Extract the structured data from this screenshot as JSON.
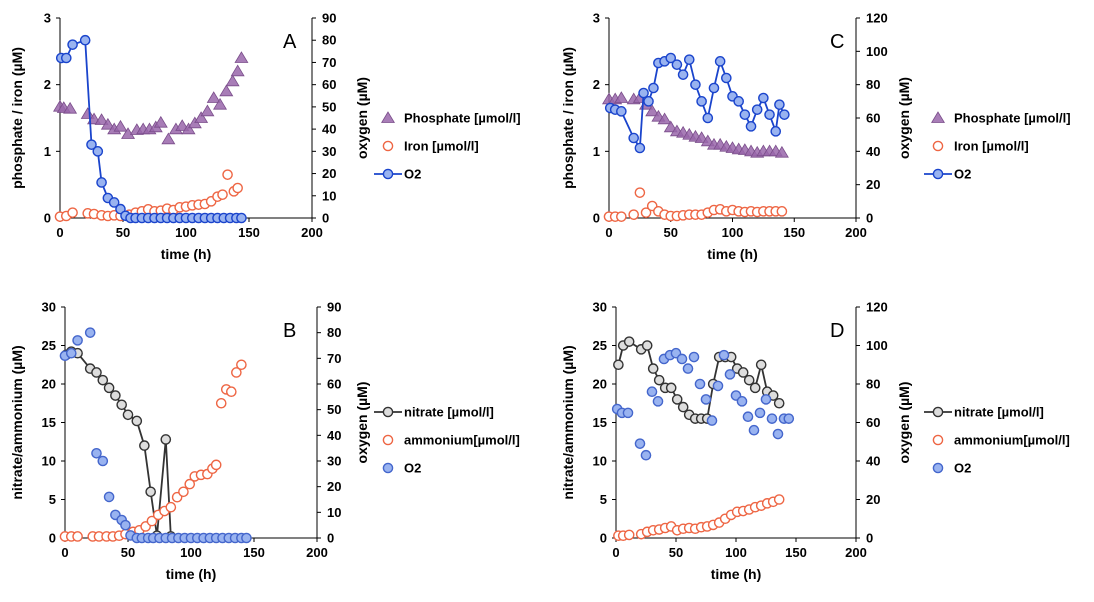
{
  "chart_data": [
    {
      "panel": "A",
      "type": "scatter",
      "xlabel": "time (h)",
      "ylabel": "phosphate / iron (µM)",
      "y2label": "oxygen (µM)",
      "xlim": [
        0,
        200
      ],
      "xticks": [
        0,
        50,
        100,
        150,
        200
      ],
      "ylim": [
        0,
        3
      ],
      "yticks": [
        0,
        1,
        2,
        3
      ],
      "y2lim": [
        0,
        90
      ],
      "y2ticks": [
        0,
        10,
        20,
        30,
        40,
        50,
        60,
        70,
        80,
        90
      ],
      "legend": [
        "Phosphate [µmol/l]",
        "Iron [µmol/l]",
        "O2"
      ],
      "series": [
        {
          "name": "Phosphate [µmol/l]",
          "axis": "left",
          "marker": "triangle",
          "color": "#9966aa",
          "line": false,
          "x": [
            0,
            3,
            8,
            22,
            27,
            33,
            38,
            43,
            48,
            54,
            61,
            66,
            71,
            76,
            80,
            86,
            92,
            97,
            102,
            107,
            112,
            117,
            122,
            127,
            132,
            137,
            141,
            144
          ],
          "y": [
            1.67,
            1.65,
            1.64,
            1.56,
            1.48,
            1.47,
            1.4,
            1.33,
            1.37,
            1.26,
            1.32,
            1.33,
            1.33,
            1.36,
            1.43,
            1.18,
            1.33,
            1.38,
            1.33,
            1.42,
            1.5,
            1.6,
            1.8,
            1.7,
            1.9,
            2.05,
            2.2,
            2.4
          ]
        },
        {
          "name": "Iron [µmol/l]",
          "axis": "left",
          "marker": "circle",
          "color": "#ee6644",
          "line": false,
          "x": [
            0,
            5,
            10,
            22,
            27,
            33,
            38,
            43,
            48,
            55,
            60,
            65,
            70,
            75,
            80,
            85,
            90,
            95,
            100,
            105,
            110,
            115,
            120,
            125,
            129,
            133,
            138,
            141
          ],
          "y": [
            0.02,
            0.03,
            0.08,
            0.07,
            0.06,
            0.04,
            0.03,
            0.04,
            0.03,
            0.05,
            0.08,
            0.1,
            0.13,
            0.1,
            0.11,
            0.14,
            0.12,
            0.16,
            0.17,
            0.19,
            0.2,
            0.21,
            0.25,
            0.32,
            0.35,
            0.65,
            0.4,
            0.45
          ]
        },
        {
          "name": "O2",
          "axis": "right",
          "marker": "circle",
          "color": "#1a44cc",
          "fill": "#99b3f0",
          "line": true,
          "x": [
            1,
            5,
            10,
            20,
            25,
            30,
            33,
            38,
            43,
            48,
            52,
            56,
            60,
            65,
            70,
            75,
            80,
            85,
            90,
            95,
            100,
            105,
            110,
            115,
            120,
            125,
            130,
            135,
            140,
            144
          ],
          "y": [
            72,
            72,
            78,
            80,
            33,
            30,
            16,
            9,
            7,
            4,
            1,
            0,
            0,
            0,
            0,
            0,
            0,
            0,
            0,
            0,
            0,
            0,
            0,
            0,
            0,
            0,
            0,
            0,
            0,
            0
          ]
        }
      ]
    },
    {
      "panel": "B",
      "type": "scatter",
      "xlabel": "time (h)",
      "ylabel": "nitrate/ammonium (µM)",
      "y2label": "oxygen (µM)",
      "xlim": [
        0,
        200
      ],
      "xticks": [
        0,
        50,
        100,
        150,
        200
      ],
      "ylim": [
        0,
        30
      ],
      "yticks": [
        0,
        5,
        10,
        15,
        20,
        25,
        30
      ],
      "y2lim": [
        0,
        90
      ],
      "y2ticks": [
        0,
        10,
        20,
        30,
        40,
        50,
        60,
        70,
        80,
        90
      ],
      "legend": [
        "nitrate [µmol/l]",
        "ammonium[µmol/l]",
        "O2"
      ],
      "series": [
        {
          "name": "nitrate [µmol/l]",
          "axis": "left",
          "marker": "circle",
          "color": "#333333",
          "fill": "#dddddd",
          "line": true,
          "x": [
            1,
            5,
            10,
            20,
            25,
            30,
            35,
            40,
            45,
            50,
            57,
            63,
            68,
            73,
            80,
            84
          ],
          "y": [
            23.8,
            24.2,
            24,
            22,
            21.5,
            20.5,
            19.5,
            18.5,
            17.3,
            16,
            15.2,
            12,
            6,
            0.3,
            12.8,
            0.2
          ]
        },
        {
          "name": "ammonium[µmol/l]",
          "axis": "left",
          "marker": "circle",
          "color": "#ee6644",
          "line": false,
          "x": [
            0,
            5,
            10,
            22,
            27,
            33,
            38,
            43,
            48,
            54,
            59,
            64,
            69,
            74,
            79,
            84,
            89,
            94,
            99,
            103,
            108,
            113,
            117,
            120,
            124,
            128,
            132,
            136,
            140
          ],
          "y": [
            0.2,
            0.2,
            0.2,
            0.2,
            0.2,
            0.2,
            0.2,
            0.3,
            0.5,
            0.8,
            1.0,
            1.5,
            2.2,
            3.0,
            3.5,
            4.0,
            5.3,
            6.0,
            7.0,
            8.0,
            8.2,
            8.3,
            9.0,
            9.5,
            17.5,
            19.3,
            19.0,
            21.5,
            22.5
          ]
        },
        {
          "name": "O2",
          "axis": "right",
          "marker": "circle",
          "color": "#4466cc",
          "fill": "#99b3f0",
          "line": false,
          "x": [
            0,
            5,
            10,
            20,
            25,
            30,
            35,
            40,
            45,
            48,
            52,
            57,
            61,
            66,
            70,
            75,
            80,
            85,
            90,
            95,
            100,
            105,
            110,
            115,
            120,
            125,
            130,
            135,
            140,
            144
          ],
          "y": [
            71,
            72,
            77,
            80,
            33,
            30,
            16,
            9,
            7,
            5,
            1,
            0,
            0,
            0,
            0,
            0,
            0,
            0,
            0,
            0,
            0,
            0,
            0,
            0,
            0,
            0,
            0,
            0,
            0,
            0
          ]
        }
      ]
    },
    {
      "panel": "C",
      "type": "scatter",
      "xlabel": "time (h)",
      "ylabel": "phosphate / iron (µM)",
      "y2label": "oxygen (µM)",
      "xlim": [
        0,
        200
      ],
      "xticks": [
        0,
        50,
        100,
        150,
        200
      ],
      "ylim": [
        0,
        3
      ],
      "yticks": [
        0,
        1,
        2,
        3
      ],
      "y2lim": [
        0,
        120
      ],
      "y2ticks": [
        0,
        20,
        40,
        60,
        80,
        100,
        120
      ],
      "legend": [
        "Phosphate [µmol/l]",
        "Iron [µmol/l]",
        "O2"
      ],
      "series": [
        {
          "name": "Phosphate [µmol/l]",
          "axis": "left",
          "marker": "triangle",
          "color": "#9966aa",
          "line": false,
          "x": [
            0,
            5,
            10,
            20,
            25,
            30,
            35,
            40,
            45,
            50,
            55,
            60,
            65,
            70,
            75,
            80,
            85,
            90,
            95,
            100,
            105,
            110,
            115,
            120,
            125,
            130,
            135,
            140
          ],
          "y": [
            1.78,
            1.78,
            1.8,
            1.78,
            1.8,
            1.7,
            1.6,
            1.52,
            1.48,
            1.36,
            1.3,
            1.28,
            1.25,
            1.22,
            1.2,
            1.15,
            1.1,
            1.1,
            1.07,
            1.05,
            1.03,
            1.02,
            1.0,
            0.98,
            1.0,
            1.0,
            1.0,
            0.98
          ]
        },
        {
          "name": "Iron [µmol/l]",
          "axis": "left",
          "marker": "circle",
          "color": "#ee6644",
          "line": false,
          "x": [
            0,
            5,
            10,
            20,
            25,
            30,
            35,
            40,
            45,
            50,
            55,
            60,
            65,
            70,
            75,
            80,
            85,
            90,
            95,
            100,
            105,
            110,
            115,
            120,
            125,
            130,
            135,
            140
          ],
          "y": [
            0.02,
            0.02,
            0.02,
            0.05,
            0.38,
            0.08,
            0.18,
            0.1,
            0.05,
            0.03,
            0.03,
            0.04,
            0.05,
            0.05,
            0.05,
            0.08,
            0.12,
            0.13,
            0.1,
            0.12,
            0.1,
            0.09,
            0.1,
            0.09,
            0.1,
            0.1,
            0.1,
            0.1
          ]
        },
        {
          "name": "O2",
          "axis": "right",
          "marker": "circle",
          "color": "#1a44cc",
          "fill": "#99b3f0",
          "line": true,
          "x": [
            1,
            5,
            10,
            20,
            25,
            28,
            32,
            36,
            40,
            45,
            50,
            55,
            60,
            65,
            70,
            75,
            80,
            85,
            90,
            95,
            100,
            105,
            110,
            115,
            120,
            125,
            130,
            135,
            138,
            142
          ],
          "y": [
            66,
            65,
            64,
            48,
            42,
            75,
            70,
            78,
            93,
            94,
            96,
            92,
            86,
            95,
            80,
            70,
            60,
            78,
            94,
            84,
            73,
            70,
            62,
            55,
            65,
            72,
            62,
            52,
            68,
            62
          ]
        }
      ]
    },
    {
      "panel": "D",
      "type": "scatter",
      "xlabel": "time (h)",
      "ylabel": "nitrate/ammonium (µM)",
      "y2label": "oxygen (µM)",
      "xlim": [
        0,
        200
      ],
      "xticks": [
        0,
        50,
        100,
        150,
        200
      ],
      "ylim": [
        0,
        30
      ],
      "yticks": [
        0,
        5,
        10,
        15,
        20,
        25,
        30
      ],
      "y2lim": [
        0,
        120
      ],
      "y2ticks": [
        0,
        20,
        40,
        60,
        80,
        100,
        120
      ],
      "legend": [
        "nitrate [µmol/l]",
        "ammonium[µmol/l]",
        "O2"
      ],
      "series": [
        {
          "name": "nitrate [µmol/l]",
          "axis": "left",
          "marker": "circle",
          "color": "#333333",
          "fill": "#dddddd",
          "line": true,
          "x": [
            2,
            6,
            11,
            21,
            26,
            31,
            36,
            41,
            46,
            51,
            56,
            61,
            66,
            71,
            76,
            81,
            86,
            91,
            96,
            101,
            106,
            111,
            116,
            121,
            126,
            131,
            136
          ],
          "y": [
            22.5,
            25,
            25.5,
            24.5,
            25,
            22,
            20.5,
            19.5,
            19.5,
            18,
            17,
            16,
            15.5,
            15.5,
            15.5,
            20,
            23.5,
            23.5,
            23.5,
            22,
            21.5,
            20.5,
            19.5,
            22.5,
            19,
            18.5,
            17.5
          ]
        },
        {
          "name": "ammonium[µmol/l]",
          "axis": "left",
          "marker": "circle",
          "color": "#ee6644",
          "line": false,
          "x": [
            2,
            6,
            11,
            21,
            26,
            31,
            36,
            41,
            46,
            51,
            56,
            61,
            66,
            71,
            76,
            81,
            86,
            91,
            96,
            101,
            106,
            111,
            116,
            121,
            126,
            131,
            136
          ],
          "y": [
            0.3,
            0.3,
            0.4,
            0.5,
            0.8,
            1.0,
            1.1,
            1.3,
            1.5,
            1.0,
            1.2,
            1.3,
            1.2,
            1.4,
            1.5,
            1.7,
            2.0,
            2.5,
            3.0,
            3.4,
            3.5,
            3.7,
            4.0,
            4.2,
            4.5,
            4.7,
            5.0
          ]
        },
        {
          "name": "O2",
          "axis": "right",
          "marker": "circle",
          "color": "#4466cc",
          "fill": "#99b3f0",
          "line": false,
          "x": [
            1,
            5,
            10,
            20,
            25,
            30,
            35,
            40,
            45,
            50,
            55,
            60,
            65,
            70,
            75,
            80,
            85,
            90,
            95,
            100,
            105,
            110,
            115,
            120,
            125,
            130,
            135,
            140,
            144
          ],
          "y": [
            67,
            65,
            65,
            49,
            43,
            76,
            71,
            93,
            95,
            96,
            93,
            88,
            94,
            80,
            72,
            61,
            79,
            95,
            85,
            74,
            71,
            63,
            56,
            65,
            72,
            62,
            54,
            62,
            62
          ]
        }
      ]
    }
  ]
}
